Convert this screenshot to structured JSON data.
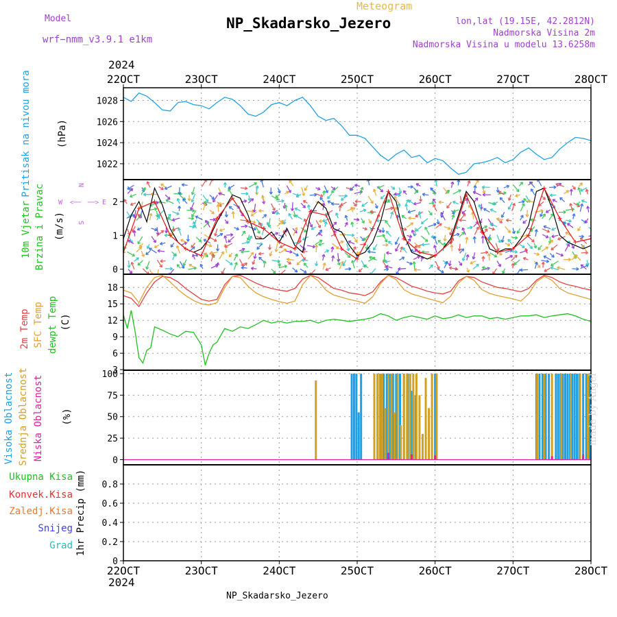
{
  "header": {
    "title": "Meteogram",
    "station": "NP_Skadarsko_Jezero",
    "model_label": "Model",
    "model_name": "wrf−nmm_v3.9.1  e1km",
    "lonlat": "lon,lat (19.15E, 42.2812N)",
    "altitude": "Nadmorska Visina 2m",
    "model_altitude": "Nadmorska Visina u modelu 13.6258m",
    "watermark": "made by Angel",
    "footer": "NP_Skadarsko_Jezero"
  },
  "colors": {
    "pressure": "#1ea0e6",
    "wind_speed": "#000000",
    "wind_gust": "#e82020",
    "temp_2m": "#e64040",
    "temp_sfc": "#e0a030",
    "dewpoint": "#20c020",
    "cloud_high": "#1ea0e6",
    "cloud_mid": "#d4a020",
    "cloud_low": "#e020a0",
    "precip_total": "#20c020",
    "precip_conv": "#e83030",
    "precip_frozen": "#f07828",
    "precip_snow": "#4040e8",
    "precip_hail": "#20c0c0",
    "compass": "#c060e0"
  },
  "time_axis": {
    "year": "2024",
    "ticks": [
      "22OCT",
      "23OCT",
      "24OCT",
      "25OCT",
      "26OCT",
      "27OCT",
      "28OCT"
    ],
    "start_day": 22,
    "end_day": 28
  },
  "chart_data": [
    {
      "type": "line",
      "panel": "pressure",
      "ylabel": [
        "Pritisak na nivou mora",
        "(hPa)"
      ],
      "ylim": [
        1020.5,
        1029.2
      ],
      "yticks": [
        "1022",
        "1024",
        "1026",
        "1028"
      ],
      "ytick_values": [
        1022,
        1024,
        1026,
        1028
      ],
      "grid": true,
      "series": [
        {
          "key": "pressure",
          "x_day": [
            22.0,
            22.1,
            22.2,
            22.3,
            22.4,
            22.5,
            22.6,
            22.7,
            22.8,
            22.9,
            23.0,
            23.1,
            23.2,
            23.3,
            23.4,
            23.5,
            23.6,
            23.7,
            23.8,
            23.9,
            24.0,
            24.1,
            24.2,
            24.3,
            24.4,
            24.5,
            24.6,
            24.7,
            24.8,
            24.9,
            25.0,
            25.1,
            25.2,
            25.3,
            25.4,
            25.5,
            25.6,
            25.7,
            25.8,
            25.9,
            26.0,
            26.1,
            26.2,
            26.3,
            26.4,
            26.5,
            26.6,
            26.7,
            26.8,
            26.9,
            27.0,
            27.1,
            27.2,
            27.3,
            27.4,
            27.5,
            27.6,
            27.7,
            27.8,
            27.9,
            28.0
          ],
          "values": [
            1028.3,
            1027.9,
            1028.7,
            1028.4,
            1027.8,
            1027.1,
            1027.0,
            1027.8,
            1027.9,
            1027.6,
            1027.5,
            1027.2,
            1027.8,
            1028.3,
            1028.1,
            1027.5,
            1026.7,
            1026.5,
            1026.9,
            1027.6,
            1027.8,
            1027.5,
            1028.0,
            1028.3,
            1027.5,
            1026.5,
            1026.1,
            1026.3,
            1025.6,
            1024.7,
            1024.7,
            1024.4,
            1023.6,
            1022.8,
            1022.3,
            1022.9,
            1023.3,
            1022.6,
            1022.8,
            1022.1,
            1022.5,
            1022.3,
            1021.6,
            1021.0,
            1021.2,
            1022.0,
            1022.1,
            1022.3,
            1022.6,
            1022.1,
            1022.4,
            1023.1,
            1023.5,
            1022.9,
            1022.4,
            1022.6,
            1023.4,
            1024.0,
            1024.5,
            1024.4,
            1024.2
          ]
        }
      ]
    },
    {
      "type": "line",
      "panel": "wind",
      "ylabel": [
        "10m Vjetar",
        "Brzina i Pravac",
        "(m/s)"
      ],
      "ylim": [
        -0.15,
        2.65
      ],
      "yticks": [
        "0",
        "1",
        "2"
      ],
      "ytick_values": [
        0,
        1,
        2
      ],
      "grid": false,
      "compass": {
        "n": "N",
        "e": "E",
        "w": "W",
        "s": "S",
        "arrow": "<──",
        "arrow_right": "──>"
      },
      "series": [
        {
          "key": "wind_speed",
          "x_day": [
            22.0,
            22.1,
            22.2,
            22.3,
            22.4,
            22.5,
            22.6,
            22.7,
            22.8,
            22.9,
            23.0,
            23.1,
            23.2,
            23.3,
            23.4,
            23.5,
            23.6,
            23.7,
            23.8,
            23.9,
            24.0,
            24.1,
            24.2,
            24.3,
            24.4,
            24.5,
            24.6,
            24.7,
            24.8,
            24.9,
            25.0,
            25.1,
            25.2,
            25.3,
            25.4,
            25.5,
            25.6,
            25.7,
            25.8,
            25.9,
            26.0,
            26.1,
            26.2,
            26.3,
            26.4,
            26.5,
            26.6,
            26.7,
            26.8,
            26.9,
            27.0,
            27.1,
            27.2,
            27.3,
            27.4,
            27.5,
            27.6,
            27.7,
            27.8,
            27.9,
            28.0
          ],
          "values": [
            0.9,
            1.6,
            2.0,
            1.4,
            2.4,
            1.9,
            1.2,
            0.8,
            0.6,
            0.5,
            0.6,
            0.9,
            1.4,
            1.8,
            2.2,
            2.1,
            1.6,
            0.9,
            0.9,
            1.1,
            0.8,
            1.2,
            0.7,
            0.5,
            1.6,
            2.0,
            1.8,
            1.2,
            1.1,
            0.7,
            0.4,
            0.5,
            0.8,
            1.4,
            2.3,
            2.0,
            1.0,
            0.5,
            0.4,
            0.3,
            0.4,
            0.6,
            0.9,
            1.6,
            2.3,
            2.0,
            1.2,
            0.6,
            0.5,
            0.6,
            0.6,
            0.9,
            1.3,
            2.3,
            2.4,
            1.8,
            1.0,
            0.8,
            0.7,
            0.6,
            0.7
          ]
        },
        {
          "key": "wind_gust",
          "x_day": [
            22.0,
            22.2,
            22.4,
            22.6,
            22.8,
            23.0,
            23.2,
            23.4,
            23.6,
            23.8,
            24.0,
            24.2,
            24.4,
            24.6,
            24.8,
            25.0,
            25.2,
            25.4,
            25.6,
            25.8,
            26.0,
            26.2,
            26.4,
            26.6,
            26.8,
            27.0,
            27.2,
            27.4,
            27.6,
            27.8,
            28.0
          ],
          "values": [
            0.5,
            1.8,
            2.0,
            1.0,
            0.6,
            0.4,
            1.5,
            2.1,
            1.4,
            1.2,
            0.8,
            0.6,
            1.7,
            1.6,
            0.6,
            0.3,
            1.2,
            2.3,
            0.9,
            0.5,
            0.4,
            0.8,
            2.2,
            1.1,
            0.5,
            0.6,
            1.0,
            2.4,
            1.5,
            0.8,
            0.9
          ]
        }
      ]
    },
    {
      "type": "line",
      "panel": "temperature",
      "ylabel": [
        "2m Temp",
        "SFC Temp",
        "dewpt Temp",
        "(C)"
      ],
      "ylim": [
        2.9,
        20.4
      ],
      "yticks": [
        "3",
        "6",
        "9",
        "12",
        "15",
        "18"
      ],
      "ytick_values": [
        3,
        6,
        9,
        12,
        15,
        18
      ],
      "grid": true,
      "series": [
        {
          "key": "temp_2m",
          "x_day": [
            22.0,
            22.1,
            22.2,
            22.3,
            22.4,
            22.5,
            22.6,
            22.7,
            22.8,
            22.9,
            23.0,
            23.1,
            23.2,
            23.3,
            23.4,
            23.5,
            23.6,
            23.7,
            23.8,
            23.9,
            24.0,
            24.1,
            24.2,
            24.3,
            24.4,
            24.5,
            24.6,
            24.7,
            24.8,
            24.9,
            25.0,
            25.1,
            25.2,
            25.3,
            25.4,
            25.5,
            25.6,
            25.7,
            25.8,
            25.9,
            26.0,
            26.1,
            26.2,
            26.3,
            26.4,
            26.5,
            26.6,
            26.7,
            26.8,
            26.9,
            27.0,
            27.1,
            27.2,
            27.3,
            27.4,
            27.5,
            27.6,
            27.7,
            27.8,
            27.9,
            28.0
          ],
          "values": [
            16.5,
            16.0,
            14.5,
            17.0,
            19.0,
            20.0,
            19.8,
            19.0,
            17.8,
            16.8,
            15.8,
            15.5,
            15.8,
            18.5,
            20.0,
            20.2,
            19.5,
            18.8,
            18.2,
            17.8,
            17.5,
            17.3,
            17.8,
            19.5,
            20.2,
            19.8,
            18.8,
            17.8,
            17.5,
            17.0,
            16.8,
            16.5,
            17.2,
            19.0,
            20.2,
            19.8,
            19.0,
            18.2,
            17.8,
            17.3,
            17.0,
            16.8,
            17.3,
            19.2,
            20.0,
            19.8,
            19.0,
            18.5,
            18.0,
            17.8,
            17.5,
            17.2,
            17.8,
            19.3,
            20.2,
            19.8,
            19.0,
            18.5,
            18.2,
            17.8,
            17.5
          ]
        },
        {
          "key": "temp_sfc",
          "x_day": [
            22.0,
            22.1,
            22.2,
            22.3,
            22.4,
            22.5,
            22.6,
            22.7,
            22.8,
            22.9,
            23.0,
            23.1,
            23.2,
            23.3,
            23.4,
            23.5,
            23.6,
            23.7,
            23.8,
            23.9,
            24.0,
            24.1,
            24.2,
            24.3,
            24.4,
            24.5,
            24.6,
            24.7,
            24.8,
            24.9,
            25.0,
            25.1,
            25.2,
            25.3,
            25.4,
            25.5,
            25.6,
            25.7,
            25.8,
            25.9,
            26.0,
            26.1,
            26.2,
            26.3,
            26.4,
            26.5,
            26.6,
            26.7,
            26.8,
            26.9,
            27.0,
            27.1,
            27.2,
            27.3,
            27.4,
            27.5,
            27.6,
            27.7,
            27.8,
            27.9,
            28.0
          ],
          "values": [
            17.5,
            17.0,
            15.2,
            18.0,
            19.8,
            20.2,
            19.0,
            17.6,
            16.5,
            15.6,
            15.0,
            14.8,
            15.2,
            18.0,
            20.0,
            19.8,
            18.2,
            17.0,
            16.3,
            15.8,
            15.4,
            15.1,
            15.5,
            18.5,
            20.2,
            19.2,
            17.5,
            16.6,
            16.2,
            15.8,
            15.5,
            15.1,
            16.3,
            18.7,
            20.2,
            19.4,
            17.6,
            16.8,
            16.4,
            16.0,
            15.6,
            15.2,
            16.4,
            18.8,
            20.0,
            19.3,
            17.6,
            16.9,
            16.5,
            16.2,
            15.9,
            15.5,
            16.8,
            19.0,
            20.0,
            19.3,
            17.8,
            17.0,
            16.6,
            16.2,
            15.8
          ]
        },
        {
          "key": "dewpoint",
          "x_day": [
            22.0,
            22.05,
            22.1,
            22.15,
            22.2,
            22.25,
            22.3,
            22.35,
            22.4,
            22.5,
            22.6,
            22.7,
            22.8,
            22.9,
            23.0,
            23.05,
            23.1,
            23.15,
            23.2,
            23.3,
            23.4,
            23.5,
            23.6,
            23.7,
            23.8,
            23.9,
            24.0,
            24.1,
            24.2,
            24.3,
            24.4,
            24.5,
            24.6,
            24.7,
            24.8,
            24.9,
            25.0,
            25.1,
            25.2,
            25.3,
            25.4,
            25.5,
            25.6,
            25.7,
            25.8,
            25.9,
            26.0,
            26.1,
            26.2,
            26.3,
            26.4,
            26.5,
            26.6,
            26.7,
            26.8,
            26.9,
            27.0,
            27.1,
            27.2,
            27.3,
            27.4,
            27.5,
            27.6,
            27.7,
            27.8,
            27.9,
            28.0
          ],
          "values": [
            13.0,
            10.5,
            13.8,
            10.0,
            5.2,
            4.2,
            6.5,
            7.0,
            10.8,
            10.2,
            9.5,
            9.0,
            10.0,
            9.8,
            7.5,
            3.8,
            6.0,
            7.5,
            8.0,
            10.5,
            10.0,
            10.8,
            10.5,
            11.2,
            12.0,
            11.5,
            11.8,
            11.5,
            11.8,
            11.8,
            12.0,
            11.5,
            12.0,
            12.2,
            12.0,
            11.8,
            12.0,
            12.2,
            12.5,
            13.2,
            12.8,
            12.0,
            12.5,
            12.8,
            12.5,
            12.2,
            12.8,
            12.3,
            12.5,
            13.0,
            12.5,
            12.8,
            12.8,
            12.3,
            12.5,
            12.2,
            12.5,
            12.8,
            12.8,
            13.0,
            12.5,
            12.8,
            13.0,
            13.2,
            12.8,
            12.2,
            11.8
          ]
        }
      ]
    },
    {
      "type": "bar",
      "panel": "clouds",
      "ylabel": [
        "Visoka Oblacnost",
        "Srednja Oblacnost",
        "Niska Oblacnost",
        "(%)"
      ],
      "ylim": [
        -6,
        104
      ],
      "yticks": [
        "0",
        "25",
        "50",
        "75",
        "100"
      ],
      "ytick_values": [
        0,
        25,
        50,
        75,
        100
      ],
      "grid": true,
      "series": [
        {
          "key": "cloud_high",
          "x_day": [
            24.93,
            24.96,
            24.99,
            25.02,
            25.05,
            25.3,
            25.34,
            25.38,
            25.42,
            25.46,
            25.5,
            25.55,
            25.6,
            25.65,
            25.7,
            25.75,
            26.0,
            27.3,
            27.34,
            27.38,
            27.42,
            27.46,
            27.55,
            27.58,
            27.61,
            27.64,
            27.67,
            27.7,
            27.73,
            27.76,
            27.79,
            27.82,
            27.85,
            27.9,
            27.94,
            27.98
          ],
          "values": [
            100,
            100,
            100,
            55,
            100,
            100,
            100,
            100,
            100,
            100,
            100,
            100,
            100,
            100,
            80,
            75,
            100,
            100,
            100,
            100,
            100,
            100,
            100,
            100,
            100,
            100,
            100,
            100,
            100,
            100,
            100,
            100,
            100,
            100,
            100,
            100
          ]
        },
        {
          "key": "cloud_mid",
          "x_day": [
            24.47,
            25.22,
            25.26,
            25.29,
            25.32,
            25.36,
            25.4,
            25.44,
            25.48,
            25.52,
            25.56,
            25.6,
            25.64,
            25.68,
            25.72,
            25.76,
            25.8,
            25.84,
            25.88,
            25.92,
            25.96,
            26.02,
            27.31,
            27.4,
            27.5,
            27.62,
            27.74,
            27.86,
            27.96
          ],
          "values": [
            92,
            100,
            100,
            100,
            100,
            60,
            100,
            100,
            55,
            100,
            40,
            100,
            100,
            100,
            100,
            100,
            75,
            30,
            95,
            60,
            100,
            100,
            100,
            100,
            100,
            100,
            100,
            100,
            100
          ]
        },
        {
          "key": "cloud_low",
          "x_day": [
            25.4,
            25.7,
            26.0,
            27.5,
            27.9
          ],
          "values": [
            8,
            6,
            5,
            4,
            6
          ]
        }
      ]
    },
    {
      "type": "line",
      "panel": "precip",
      "ylabel": [
        "Ukupna Kisa",
        "Konvek.Kisa",
        "Zaledj.Kisa",
        "Snijeg",
        "Grad",
        "1hr Precip (mm)"
      ],
      "ylim": [
        0,
        1.0
      ],
      "yticks": [
        "0",
        "0.2",
        "0.4",
        "0.6",
        "0.8"
      ],
      "ytick_values": [
        0,
        0.2,
        0.4,
        0.6,
        0.8
      ],
      "grid": true,
      "series": [
        {
          "key": "precip_total",
          "x_day": [
            22.0,
            28.0
          ],
          "values": [
            0,
            0
          ]
        }
      ]
    }
  ]
}
